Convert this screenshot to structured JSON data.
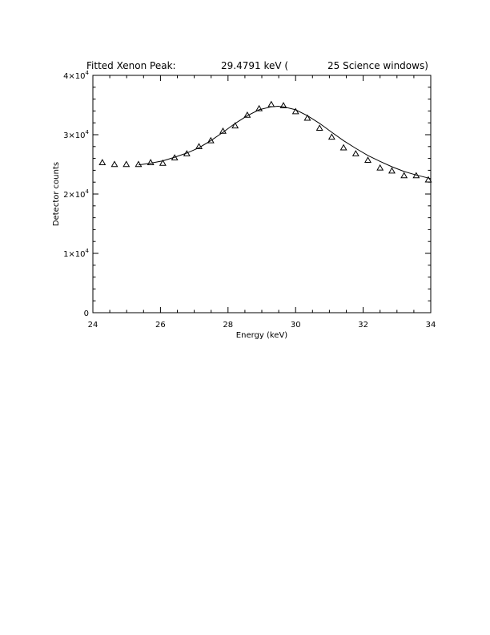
{
  "chart_data": {
    "type": "scatter",
    "title_left": "Fitted Xenon Peak:",
    "title_value": "29.4791 keV (",
    "title_right": "25 Science windows)",
    "xlabel": "Energy (keV)",
    "ylabel": "Detector counts",
    "xlim": [
      24,
      34
    ],
    "ylim": [
      0,
      40000
    ],
    "x_ticks": [
      {
        "value": 24,
        "label": "24"
      },
      {
        "value": 26,
        "label": "26"
      },
      {
        "value": 28,
        "label": "28"
      },
      {
        "value": 30,
        "label": "30"
      },
      {
        "value": 32,
        "label": "32"
      },
      {
        "value": 34,
        "label": "34"
      }
    ],
    "y_ticks": [
      {
        "value": 0,
        "label": "0",
        "exp": ""
      },
      {
        "value": 10000,
        "label": "1×10",
        "exp": "4"
      },
      {
        "value": 20000,
        "label": "2×10",
        "exp": "4"
      },
      {
        "value": 30000,
        "label": "3×10",
        "exp": "4"
      },
      {
        "value": 40000,
        "label": "4×10",
        "exp": "4"
      }
    ],
    "series": [
      {
        "kind": "points",
        "marker": "triangle",
        "x": [
          24.28,
          24.64,
          24.99,
          25.35,
          25.71,
          26.07,
          26.42,
          26.78,
          27.14,
          27.49,
          27.85,
          28.21,
          28.57,
          28.92,
          29.28,
          29.64,
          30.0,
          30.35,
          30.71,
          31.07,
          31.42,
          31.78,
          32.14,
          32.5,
          32.85,
          33.21,
          33.57,
          33.93
        ],
        "y": [
          25300,
          25000,
          25000,
          25000,
          25300,
          25200,
          26100,
          26800,
          28000,
          29000,
          30600,
          31500,
          33300,
          34400,
          35100,
          34900,
          33900,
          32800,
          31100,
          29600,
          27800,
          26800,
          25700,
          24400,
          23900,
          23100,
          23100,
          22400
        ]
      },
      {
        "kind": "line",
        "x": [
          25.35,
          25.71,
          26.07,
          26.42,
          26.78,
          27.14,
          27.49,
          27.85,
          28.21,
          28.57,
          28.92,
          29.28,
          29.48,
          29.64,
          30.0,
          30.35,
          30.71,
          31.07,
          31.42,
          31.78,
          32.14,
          32.5,
          32.85,
          33.21,
          33.57,
          34.0
        ],
        "y": [
          24900,
          25200,
          25600,
          26200,
          26900,
          27800,
          29000,
          30400,
          31900,
          33200,
          34200,
          34700,
          34800,
          34700,
          34200,
          33200,
          31900,
          30400,
          29000,
          27700,
          26500,
          25500,
          24600,
          23800,
          23200,
          22600
        ]
      }
    ],
    "grid": false
  }
}
